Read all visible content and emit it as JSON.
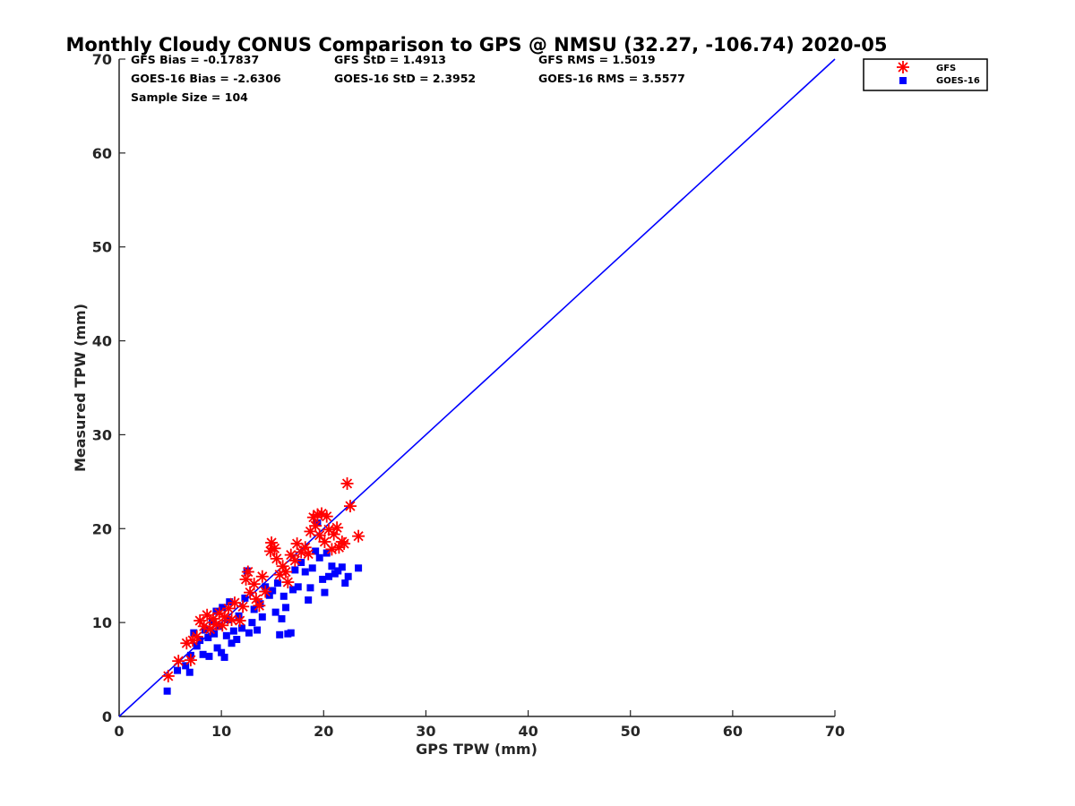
{
  "chart_data": {
    "type": "scatter",
    "title": "Monthly Cloudy CONUS Comparison to GPS @ NMSU (32.27, -106.74) 2020-05",
    "xlabel": "GPS TPW (mm)",
    "ylabel": "Measured TPW (mm)",
    "xlim": [
      0,
      70
    ],
    "ylim": [
      0,
      70
    ],
    "xticks": [
      0,
      10,
      20,
      30,
      40,
      50,
      60,
      70
    ],
    "yticks": [
      0,
      10,
      20,
      30,
      40,
      50,
      60,
      70
    ],
    "grid": false,
    "legend_position": "top-right-outside",
    "stats": {
      "gfs_bias": "GFS Bias = -0.17837",
      "gfs_std": "GFS StD = 1.4913",
      "gfs_rms": "GFS RMS = 1.5019",
      "goes_bias": "GOES-16 Bias = -2.6306",
      "goes_std": "GOES-16 StD = 2.3952",
      "goes_rms": "GOES-16 RMS = 3.5577",
      "sample_size": "Sample Size = 104"
    },
    "reference_line": {
      "x": [
        0,
        70
      ],
      "y": [
        0,
        70
      ],
      "color": "#0000ff"
    },
    "series": [
      {
        "name": "GFS",
        "marker": "asterisk",
        "color": "#ff0000",
        "points": [
          [
            4.8,
            4.3
          ],
          [
            5.8,
            5.9
          ],
          [
            6.6,
            7.8
          ],
          [
            7.0,
            6.0
          ],
          [
            7.2,
            8.1
          ],
          [
            7.6,
            8.5
          ],
          [
            7.9,
            10.2
          ],
          [
            8.3,
            9.6
          ],
          [
            8.6,
            10.8
          ],
          [
            8.9,
            9.3
          ],
          [
            9.2,
            10.4
          ],
          [
            9.5,
            9.8
          ],
          [
            9.8,
            11.0
          ],
          [
            10.1,
            9.7
          ],
          [
            10.3,
            10.6
          ],
          [
            10.7,
            11.5
          ],
          [
            11.0,
            10.3
          ],
          [
            11.3,
            12.1
          ],
          [
            11.8,
            10.2
          ],
          [
            12.1,
            11.7
          ],
          [
            12.4,
            14.6
          ],
          [
            12.6,
            15.4
          ],
          [
            12.8,
            13.2
          ],
          [
            13.2,
            14.1
          ],
          [
            13.4,
            12.5
          ],
          [
            13.7,
            11.8
          ],
          [
            14.0,
            14.9
          ],
          [
            14.3,
            13.3
          ],
          [
            14.8,
            17.6
          ],
          [
            14.9,
            18.5
          ],
          [
            15.2,
            17.9
          ],
          [
            15.4,
            16.8
          ],
          [
            15.7,
            15.1
          ],
          [
            16.0,
            16.0
          ],
          [
            16.3,
            15.4
          ],
          [
            16.5,
            14.3
          ],
          [
            16.8,
            17.2
          ],
          [
            17.2,
            16.6
          ],
          [
            17.4,
            18.4
          ],
          [
            17.8,
            17.5
          ],
          [
            18.2,
            18.0
          ],
          [
            18.5,
            17.3
          ],
          [
            18.7,
            19.7
          ],
          [
            19.0,
            21.2
          ],
          [
            19.2,
            20.3
          ],
          [
            19.4,
            21.5
          ],
          [
            19.6,
            19.3
          ],
          [
            19.8,
            21.6
          ],
          [
            20.1,
            18.6
          ],
          [
            20.3,
            21.3
          ],
          [
            20.5,
            19.9
          ],
          [
            20.8,
            17.8
          ],
          [
            21.0,
            19.4
          ],
          [
            21.3,
            20.1
          ],
          [
            21.5,
            18.0
          ],
          [
            21.8,
            18.6
          ],
          [
            22.0,
            18.4
          ],
          [
            22.3,
            24.8
          ],
          [
            22.6,
            22.4
          ],
          [
            23.4,
            19.2
          ]
        ]
      },
      {
        "name": "GOES-16",
        "marker": "square",
        "color": "#0000ff",
        "points": [
          [
            4.7,
            2.7
          ],
          [
            5.7,
            4.9
          ],
          [
            6.5,
            5.4
          ],
          [
            6.9,
            4.7
          ],
          [
            7.0,
            6.5
          ],
          [
            7.3,
            8.9
          ],
          [
            7.6,
            7.5
          ],
          [
            7.9,
            8.1
          ],
          [
            8.2,
            6.6
          ],
          [
            8.4,
            9.2
          ],
          [
            8.7,
            8.4
          ],
          [
            8.8,
            6.4
          ],
          [
            9.1,
            10.1
          ],
          [
            9.3,
            8.8
          ],
          [
            9.5,
            11.2
          ],
          [
            9.6,
            7.3
          ],
          [
            9.8,
            9.6
          ],
          [
            10.0,
            6.8
          ],
          [
            10.1,
            11.6
          ],
          [
            10.3,
            6.3
          ],
          [
            10.5,
            8.6
          ],
          [
            10.6,
            10.3
          ],
          [
            10.8,
            12.2
          ],
          [
            11.0,
            7.8
          ],
          [
            11.2,
            9.1
          ],
          [
            11.5,
            8.2
          ],
          [
            11.7,
            10.7
          ],
          [
            12.0,
            9.4
          ],
          [
            12.3,
            12.6
          ],
          [
            12.5,
            15.5
          ],
          [
            12.7,
            8.9
          ],
          [
            13.0,
            10.0
          ],
          [
            13.2,
            11.4
          ],
          [
            13.5,
            9.2
          ],
          [
            13.8,
            12.0
          ],
          [
            14.0,
            10.6
          ],
          [
            14.3,
            13.8
          ],
          [
            14.7,
            12.9
          ],
          [
            15.0,
            13.4
          ],
          [
            15.3,
            11.1
          ],
          [
            15.5,
            14.2
          ],
          [
            15.7,
            8.7
          ],
          [
            15.9,
            10.4
          ],
          [
            16.1,
            12.8
          ],
          [
            16.3,
            11.6
          ],
          [
            16.5,
            8.8
          ],
          [
            16.8,
            8.9
          ],
          [
            17.0,
            13.5
          ],
          [
            17.2,
            15.6
          ],
          [
            17.5,
            13.8
          ],
          [
            17.8,
            16.4
          ],
          [
            18.2,
            15.4
          ],
          [
            18.5,
            12.4
          ],
          [
            18.7,
            13.7
          ],
          [
            18.9,
            15.8
          ],
          [
            19.2,
            17.6
          ],
          [
            19.4,
            20.6
          ],
          [
            19.6,
            16.9
          ],
          [
            19.9,
            14.6
          ],
          [
            20.1,
            13.2
          ],
          [
            20.3,
            17.4
          ],
          [
            20.5,
            14.9
          ],
          [
            20.8,
            16.0
          ],
          [
            21.1,
            15.2
          ],
          [
            21.4,
            15.5
          ],
          [
            21.8,
            15.9
          ],
          [
            22.1,
            14.2
          ],
          [
            22.4,
            14.9
          ],
          [
            23.4,
            15.8
          ]
        ]
      }
    ]
  }
}
